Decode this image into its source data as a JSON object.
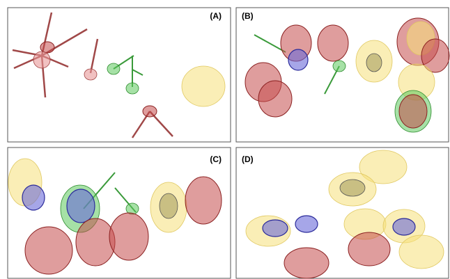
{
  "panels": [
    {
      "label": "(A)"
    },
    {
      "label": "(B)"
    },
    {
      "label": "(C)"
    },
    {
      "label": "(D)"
    }
  ]
}
